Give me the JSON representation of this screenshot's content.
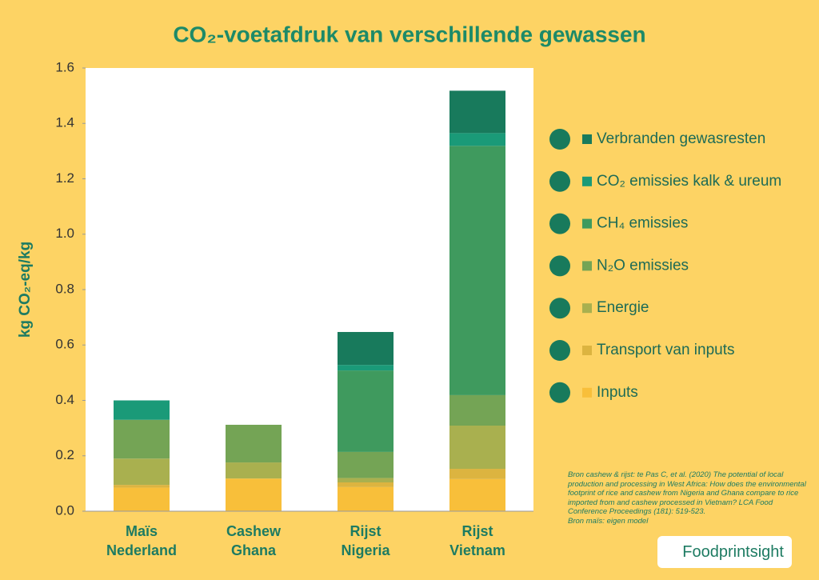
{
  "chart_data": {
    "type": "stacked-bar",
    "title": "CO₂-voetafdruk van verschillende gewassen",
    "y_label": "kg CO₂-eq/kg",
    "categories": [
      "Maïs Nederland",
      "Cashew Ghana",
      "Rijst Nigeria",
      "Rijst Vietnam"
    ],
    "series": [
      {
        "name": "Inputs",
        "color": "#f8bf3a",
        "values": [
          0.085,
          0.118,
          0.087,
          0.116
        ]
      },
      {
        "name": "Transport van inputs",
        "color": "#dcb440",
        "values": [
          0.01,
          0,
          0.017,
          0.037
        ]
      },
      {
        "name": "Energie",
        "color": "#a9b04f",
        "values": [
          0.095,
          0.058,
          0.016,
          0.156
        ]
      },
      {
        "name": "N₂O emissies",
        "color": "#74a455",
        "values": [
          0.14,
          0.136,
          0.094,
          0.11
        ]
      },
      {
        "name": "CH₄ emissies",
        "color": "#3f9a5e",
        "values": [
          0,
          0,
          0.294,
          0.9
        ]
      },
      {
        "name": "CO₂ emissies kalk & ureum",
        "color": "#1a9a78",
        "values": [
          0.07,
          0,
          0.02,
          0.046
        ]
      },
      {
        "name": "Verbranden gewasresten",
        "color": "#187a5c",
        "values": [
          0,
          0,
          0.119,
          0.153
        ]
      }
    ],
    "ylim": [
      0,
      1.6
    ],
    "yticks": [
      {
        "value": 0,
        "label": "0.0"
      },
      0.2,
      0.4,
      0.6,
      0.8,
      {
        "value": 1,
        "label": "1.0"
      },
      1.2,
      1.4,
      1.6
    ],
    "source": [
      "Bron cashew & rijst: te Pas C, et al. (2020) The potential of local production and processing in West Africa: How does the environmental footprint of rice and cashew from Nigeria and Ghana compare to rice imported from and cashew processed in Vietnam? LCA Food Conference Proceedings (181): 519-523.",
      "Bron maïs: eigen model"
    ],
    "logo": "Foodprintsight"
  }
}
